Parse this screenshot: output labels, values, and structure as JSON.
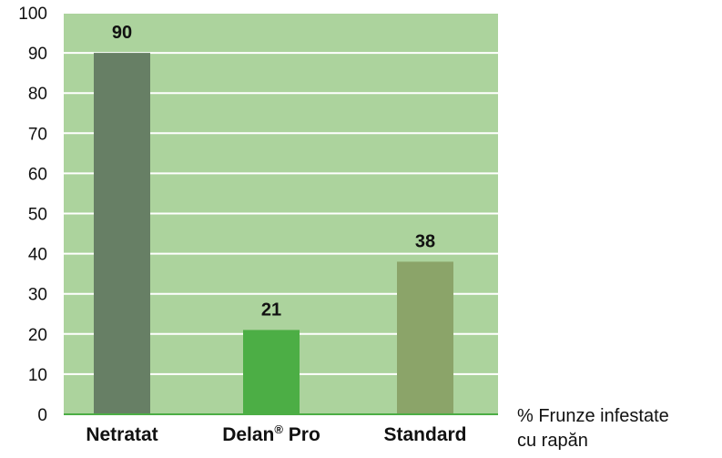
{
  "chart_data": {
    "type": "bar",
    "categories": [
      "Netratat",
      "Delan",
      "Standard"
    ],
    "category_superscripts": [
      "",
      "®",
      ""
    ],
    "category_suffixes": [
      "",
      " Pro",
      ""
    ],
    "values": [
      90,
      21,
      38
    ],
    "data_labels": [
      "90",
      "21",
      "38"
    ],
    "bar_colors": [
      "#677f65",
      "#4cae45",
      "#8ba469"
    ],
    "plot_background": "#acd39d",
    "gridline_color": "#ffffff",
    "axis_color": "#4cae45",
    "ylim": [
      0,
      100
    ],
    "yticks": [
      0,
      10,
      20,
      30,
      40,
      50,
      60,
      70,
      80,
      90,
      100
    ],
    "grid": true,
    "legend": {
      "lines": [
        "% Frunze infestate",
        "cu rapăn"
      ],
      "placement": "bottom-right"
    }
  }
}
